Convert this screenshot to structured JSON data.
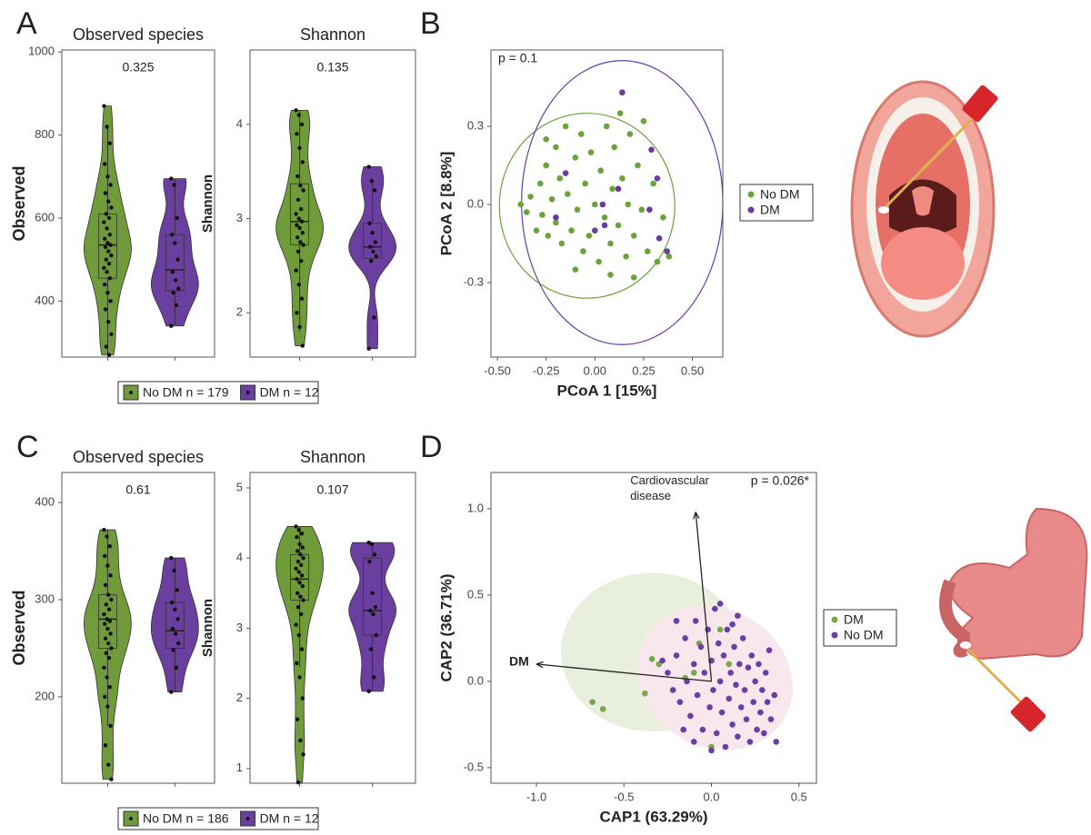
{
  "panel_labels": [
    "A",
    "B",
    "C",
    "D"
  ],
  "chart_data": [
    {
      "type": "violin",
      "title": "Observed species",
      "p_value": "0.325",
      "ylabel": "Observed",
      "ylim": [
        265,
        1005
      ],
      "yticks": [
        400,
        600,
        800,
        1000
      ],
      "series": [
        {
          "name": "No DM n = 179",
          "color": "#6f9b3a",
          "box": {
            "q1": 455,
            "median": 535,
            "q3": 610,
            "whiskers": [
              270,
              820
            ]
          },
          "values": [
            870,
            820,
            780,
            730,
            700,
            680,
            660,
            640,
            625,
            610,
            600,
            590,
            575,
            560,
            550,
            540,
            535,
            530,
            520,
            510,
            500,
            490,
            480,
            470,
            455,
            440,
            420,
            400,
            380,
            350,
            320,
            290,
            270
          ]
        },
        {
          "name": "DM n = 12",
          "color": "#6b3fa0",
          "box": {
            "q1": 425,
            "median": 475,
            "q3": 560,
            "whiskers": [
              340,
              695
            ]
          },
          "values": [
            695,
            680,
            600,
            560,
            540,
            500,
            470,
            450,
            430,
            420,
            390,
            340
          ]
        }
      ]
    },
    {
      "type": "violin",
      "title": "Shannon",
      "p_value": "0.135",
      "ylabel": "Shannon",
      "ylim": [
        1.53,
        4.79
      ],
      "yticks": [
        2,
        3,
        4
      ],
      "series": [
        {
          "color": "#6f9b3a",
          "box": {
            "q1": 2.72,
            "median": 2.97,
            "q3": 3.37,
            "whiskers": [
              1.8,
              4.15
            ]
          },
          "values": [
            4.15,
            4.1,
            4.0,
            3.9,
            3.75,
            3.6,
            3.45,
            3.35,
            3.3,
            3.2,
            3.1,
            3.05,
            3.0,
            2.97,
            2.93,
            2.9,
            2.85,
            2.8,
            2.75,
            2.72,
            2.65,
            2.55,
            2.45,
            2.3,
            2.15,
            2.0,
            1.85,
            1.65
          ]
        },
        {
          "color": "#6b3fa0",
          "box": {
            "q1": 2.58,
            "median": 2.7,
            "q3": 2.95,
            "whiskers": [
              2.55,
              3.4
            ]
          },
          "values": [
            3.55,
            3.4,
            3.3,
            2.95,
            2.85,
            2.75,
            2.7,
            2.65,
            2.6,
            2.55,
            1.95,
            1.62
          ]
        }
      ]
    },
    {
      "type": "scatter",
      "annotation": "p = 0.1",
      "xlabel": "PCoA 1 [15%]",
      "ylabel": "PCoA 2 [8.8%]",
      "xlim": [
        -0.533,
        0.656
      ],
      "ylim": [
        -0.586,
        0.593
      ],
      "xticks": [
        {
          "value": -0.5,
          "label": "-0.50"
        },
        {
          "value": -0.25,
          "label": "-0.25"
        },
        {
          "value": 0,
          "label": "0.00"
        },
        {
          "value": 0.25,
          "label": "0.25"
        },
        {
          "value": 0.5,
          "label": "0.50"
        }
      ],
      "yticks": [
        -0.3,
        {
          "value": 0,
          "label": "0.0"
        },
        0.3
      ],
      "series": [
        {
          "name": "No DM",
          "color": "#6aa33a",
          "ellipse": {
            "cx": -0.04,
            "cy": -0.005,
            "rx": 0.45,
            "ry": 0.355,
            "angle": 0
          },
          "x": [
            -0.35,
            -0.33,
            -0.3,
            -0.28,
            -0.27,
            -0.25,
            -0.24,
            -0.22,
            -0.2,
            -0.2,
            -0.18,
            -0.17,
            -0.15,
            -0.14,
            -0.12,
            -0.1,
            -0.09,
            -0.07,
            -0.06,
            -0.05,
            -0.03,
            -0.02,
            0.0,
            0.02,
            0.03,
            0.05,
            0.06,
            0.08,
            0.09,
            0.1,
            0.12,
            0.13,
            0.14,
            0.16,
            0.17,
            0.18,
            0.2,
            0.22,
            0.24,
            0.25,
            0.27,
            0.3,
            0.32,
            0.35,
            0.38,
            -0.38,
            -0.1,
            0.08,
            0.2,
            -0.25
          ],
          "y": [
            -0.03,
            0.03,
            -0.1,
            0.08,
            -0.04,
            0.15,
            -0.12,
            0.02,
            0.22,
            -0.07,
            0.1,
            -0.15,
            0.3,
            0.04,
            -0.1,
            0.18,
            -0.02,
            0.27,
            -0.18,
            0.08,
            -0.12,
            0.2,
            0.0,
            -0.22,
            0.13,
            -0.05,
            0.3,
            -0.15,
            0.06,
            0.22,
            -0.08,
            0.35,
            0.1,
            -0.2,
            0.0,
            0.27,
            -0.12,
            0.15,
            -0.02,
            0.32,
            -0.18,
            0.08,
            -0.22,
            -0.05,
            -0.2,
            0.0,
            -0.25,
            -0.27,
            -0.28,
            0.25
          ]
        },
        {
          "name": "DM",
          "color": "#6b3aa0",
          "ellipse": {
            "cx": 0.14,
            "cy": 0.007,
            "rx": 0.516,
            "ry": 0.545,
            "angle": 0
          },
          "x": [
            0.14,
            0.29,
            0.32,
            0.12,
            0.05,
            0.0,
            -0.15,
            0.28,
            0.37,
            0.33,
            0.04,
            -0.2
          ],
          "y": [
            0.43,
            0.21,
            0.1,
            0.06,
            -0.08,
            -0.1,
            0.12,
            -0.02,
            -0.18,
            -0.13,
            0.0,
            -0.05
          ]
        }
      ]
    },
    {
      "type": "violin",
      "title": "Observed species",
      "p_value": "0.61",
      "ylabel": "Observed",
      "ylim": [
        111,
        431
      ],
      "yticks": [
        200,
        300,
        400
      ],
      "series": [
        {
          "name": "No DM n = 186",
          "color": "#6f9b3a",
          "box": {
            "q1": 250,
            "median": 280,
            "q3": 305,
            "whiskers": [
              170,
              372
            ]
          },
          "values": [
            372,
            365,
            355,
            345,
            335,
            325,
            315,
            305,
            300,
            295,
            290,
            285,
            280,
            278,
            275,
            270,
            265,
            260,
            255,
            250,
            245,
            240,
            230,
            220,
            210,
            200,
            190,
            170,
            150,
            130,
            115
          ]
        },
        {
          "name": "DM n = 12",
          "color": "#6b3fa0",
          "box": {
            "q1": 250,
            "median": 268,
            "q3": 297,
            "whiskers": [
              205,
              343
            ]
          },
          "values": [
            343,
            330,
            310,
            297,
            290,
            280,
            270,
            265,
            255,
            248,
            230,
            205
          ]
        }
      ]
    },
    {
      "type": "violin",
      "title": "Shannon",
      "p_value": "0.107",
      "ylabel": "Shannon",
      "ylim": [
        0.79,
        5.22
      ],
      "yticks": [
        1,
        2,
        3,
        4,
        5
      ],
      "series": [
        {
          "color": "#6f9b3a",
          "box": {
            "q1": 3.4,
            "median": 3.7,
            "q3": 4.05,
            "whiskers": [
              2.45,
              4.45
            ]
          },
          "values": [
            4.45,
            4.4,
            4.35,
            4.3,
            4.2,
            4.15,
            4.1,
            4.05,
            4.0,
            3.95,
            3.9,
            3.85,
            3.8,
            3.75,
            3.7,
            3.65,
            3.6,
            3.5,
            3.45,
            3.4,
            3.3,
            3.2,
            3.05,
            2.9,
            2.7,
            2.5,
            2.3,
            2.0,
            1.7,
            1.4,
            1.2,
            0.8
          ]
        },
        {
          "color": "#6b3fa0",
          "box": {
            "q1": 2.9,
            "median": 3.25,
            "q3": 4.0,
            "whiskers": [
              2.1,
              4.22
            ]
          },
          "values": [
            4.22,
            4.2,
            4.05,
            3.95,
            3.5,
            3.3,
            3.25,
            3.2,
            2.9,
            2.7,
            2.3,
            2.1
          ]
        }
      ]
    },
    {
      "type": "scatter",
      "annotation": "p = 0.026*",
      "xlabel": "CAP1 (63.29%)",
      "ylabel": "CAP2 (36.71%)",
      "xlim": [
        -1.26,
        0.6
      ],
      "ylim": [
        -0.59,
        1.21
      ],
      "xticks": [
        {
          "value": -1,
          "label": "-1.0"
        },
        -0.5,
        {
          "value": 0,
          "label": "0.0"
        },
        0.5
      ],
      "yticks": [
        -0.5,
        {
          "value": 0,
          "label": "0.0"
        },
        0.5,
        {
          "value": 1,
          "label": "1.0"
        }
      ],
      "arrows": [
        {
          "label": [
            "DM"
          ],
          "x": -1.0,
          "y": 0.1
        },
        {
          "label": [
            "Cardiovascular",
            "disease"
          ],
          "x": -0.09,
          "y": 0.98
        }
      ],
      "series": [
        {
          "name": "DM",
          "color": "#7aa64a",
          "ellipse": {
            "cx": -0.34,
            "cy": 0.17,
            "rx": 0.52,
            "ry": 0.46,
            "angle": 0,
            "fill": "#e8efdd"
          },
          "x": [
            -0.68,
            -0.62,
            -0.38,
            -0.3,
            -0.2,
            -0.07,
            0.1,
            -0.15,
            0.0,
            -0.1,
            -0.34,
            0.05
          ],
          "y": [
            -0.12,
            -0.16,
            -0.07,
            0.1,
            0.35,
            0.22,
            0.1,
            0.02,
            -0.38,
            0.05,
            0.13,
            0.3
          ]
        },
        {
          "name": "No DM",
          "color": "#6a3ea6",
          "ellipse": {
            "cx": 0.02,
            "cy": 0.02,
            "rx": 0.46,
            "ry": 0.4,
            "angle": 30,
            "fill": "#f8e8ee"
          },
          "x": [
            -0.25,
            -0.22,
            -0.2,
            -0.18,
            -0.15,
            -0.14,
            -0.12,
            -0.1,
            -0.09,
            -0.08,
            -0.06,
            -0.05,
            -0.04,
            -0.02,
            -0.01,
            0.0,
            0.01,
            0.02,
            0.03,
            0.04,
            0.05,
            0.06,
            0.07,
            0.08,
            0.09,
            0.1,
            0.11,
            0.12,
            0.13,
            0.14,
            0.15,
            0.16,
            0.17,
            0.18,
            0.19,
            0.2,
            0.21,
            0.22,
            0.23,
            0.24,
            0.25,
            0.26,
            0.27,
            0.28,
            0.29,
            0.3,
            0.31,
            0.32,
            0.34,
            0.36,
            0.37,
            -0.2,
            -0.1,
            0.05,
            0.15,
            -0.28,
            0.0,
            0.12,
            0.33,
            -0.16
          ],
          "y": [
            0.05,
            -0.05,
            0.15,
            -0.12,
            0.25,
            0.0,
            -0.2,
            0.1,
            0.35,
            -0.08,
            0.2,
            -0.28,
            0.05,
            0.3,
            -0.15,
            0.12,
            -0.05,
            0.42,
            -0.3,
            0.22,
            0.0,
            -0.18,
            0.15,
            -0.38,
            0.3,
            -0.1,
            0.05,
            -0.25,
            0.2,
            -0.02,
            -0.32,
            0.1,
            -0.15,
            0.25,
            -0.05,
            -0.22,
            0.08,
            -0.35,
            0.15,
            -0.12,
            0.0,
            -0.28,
            0.1,
            -0.18,
            -0.05,
            -0.3,
            0.05,
            -0.12,
            -0.22,
            -0.08,
            -0.35,
            0.35,
            -0.35,
            0.45,
            0.38,
            0.12,
            -0.4,
            0.33,
            0.18,
            -0.28
          ]
        }
      ]
    }
  ]
}
